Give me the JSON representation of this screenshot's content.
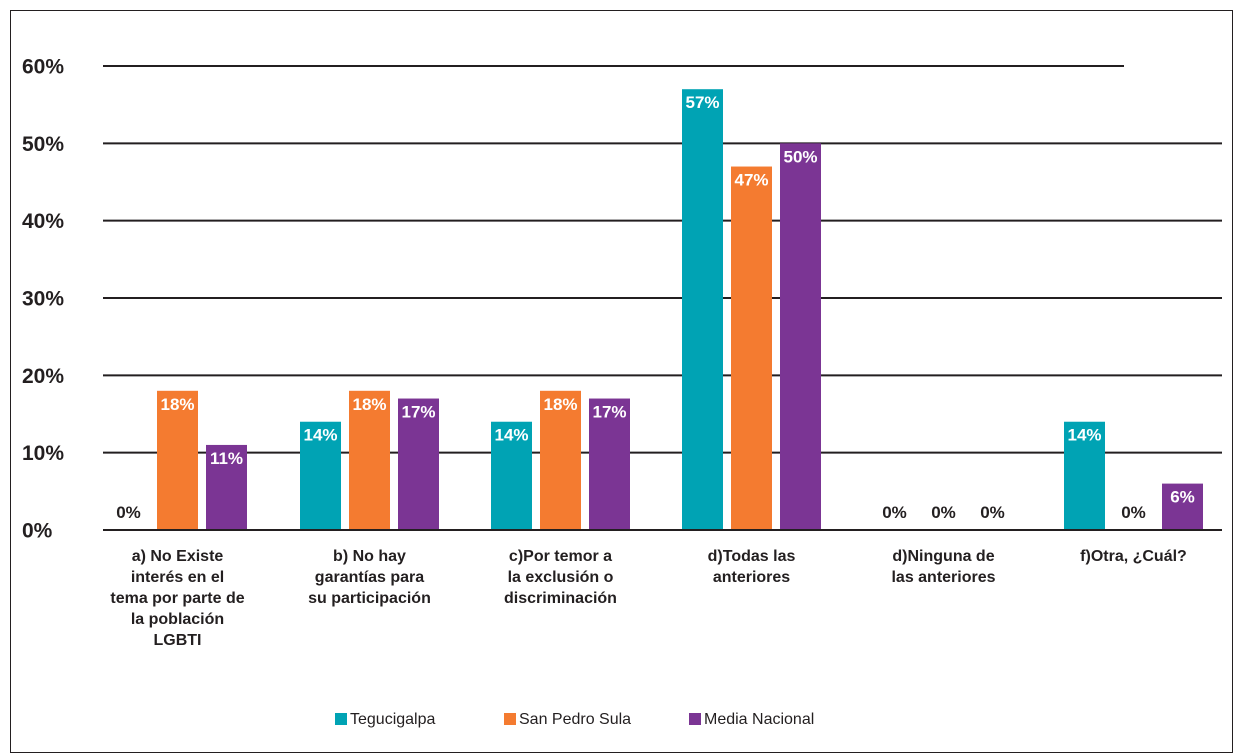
{
  "chart_data": {
    "type": "bar",
    "categories": [
      [
        "a) No Existe",
        "interés en el",
        "tema por parte de",
        "la población",
        "LGBTI"
      ],
      [
        "b) No hay",
        "garantías para",
        "su participación"
      ],
      [
        "c)Por temor a",
        "la exclusión o",
        "discriminación"
      ],
      [
        "d)Todas las",
        "anteriores"
      ],
      [
        "d)Ninguna de",
        "las anteriores"
      ],
      [
        "f)Otra, ¿Cuál?"
      ]
    ],
    "series": [
      {
        "name": "Tegucigalpa",
        "color": "#00a3b4",
        "values": [
          0,
          14,
          14,
          57,
          0,
          14
        ],
        "labels": [
          "0%",
          "14%",
          "14%",
          "57%",
          "0%",
          "14%"
        ]
      },
      {
        "name": "San Pedro Sula",
        "color": "#f47b30",
        "values": [
          18,
          18,
          18,
          47,
          0,
          0
        ],
        "labels": [
          "18%",
          "18%",
          "18%",
          "47%",
          "0%",
          "0%"
        ]
      },
      {
        "name": "Media Nacional",
        "color": "#7b3594",
        "values": [
          11,
          17,
          17,
          50,
          0,
          6
        ],
        "labels": [
          "11%",
          "17%",
          "17%",
          "50%",
          "0%",
          "6%"
        ]
      }
    ],
    "yticks": [
      "0%",
      "10%",
      "20%",
      "30%",
      "40%",
      "50%",
      "60%"
    ],
    "ylim": [
      0,
      60
    ],
    "grid": true,
    "legend": "bottom"
  }
}
